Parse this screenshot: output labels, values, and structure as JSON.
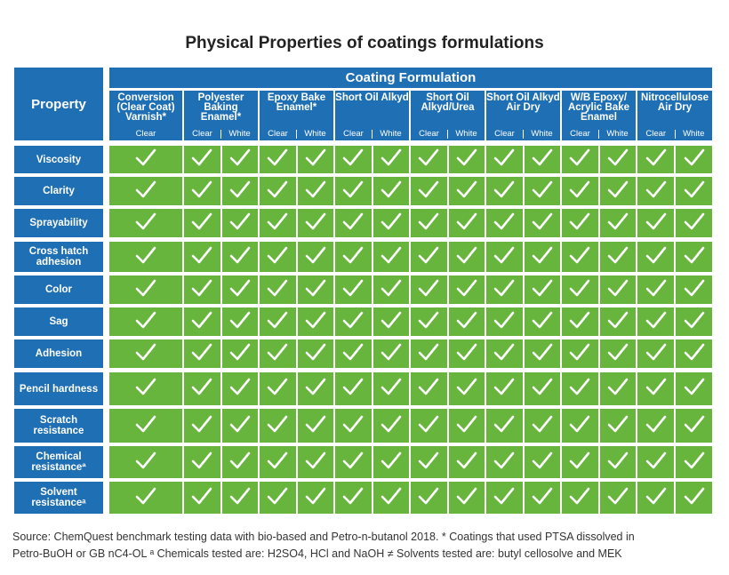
{
  "title": "Physical Properties of coatings formulations",
  "header": {
    "property": "Property",
    "coating_formulation": "Coating Formulation"
  },
  "chart_data": {
    "type": "table",
    "columns": [
      {
        "name": "Conversion (Clear Coat) Varnish*",
        "subs": [
          "Clear"
        ]
      },
      {
        "name": "Polyester Baking Enamel*",
        "subs": [
          "Clear",
          "White"
        ]
      },
      {
        "name": "Epoxy Bake Enamel*",
        "subs": [
          "Clear",
          "White"
        ]
      },
      {
        "name": "Short Oil Alkyd",
        "subs": [
          "Clear",
          "White"
        ]
      },
      {
        "name": "Short Oil Alkyd/Urea",
        "subs": [
          "Clear",
          "White"
        ]
      },
      {
        "name": "Short Oil Alkyd Air Dry",
        "subs": [
          "Clear",
          "White"
        ]
      },
      {
        "name": "W/B Epoxy/ Acrylic Bake Enamel",
        "subs": [
          "Clear",
          "White"
        ]
      },
      {
        "name": "Nitrocellulose Air Dry",
        "subs": [
          "Clear",
          "White"
        ]
      }
    ],
    "rows": [
      "Viscosity",
      "Clarity",
      "Sprayability",
      "Cross hatch adhesion",
      "Color",
      "Sag",
      "Adhesion",
      "Pencil hardness",
      "Scratch resistance",
      "Chemical resistanceª",
      "Solvent resistanceᵃ"
    ],
    "cell_value": "pass",
    "all_cells_checked": true
  },
  "colors": {
    "header_blue": "#1f6fb4",
    "cell_green": "#67b53c",
    "check": "#ffffff"
  },
  "footer": {
    "line1": "Source: ChemQuest benchmark testing data with bio-based and Petro-n-butanol 2018.  * Coatings that used PTSA dissolved in",
    "line2": "Petro-BuOH or GB nC4-OL  ᵃ Chemicals tested are: H2SO4, HCl and NaOH   ≠ Solvents tested are: butyl cellosolve and MEK"
  }
}
